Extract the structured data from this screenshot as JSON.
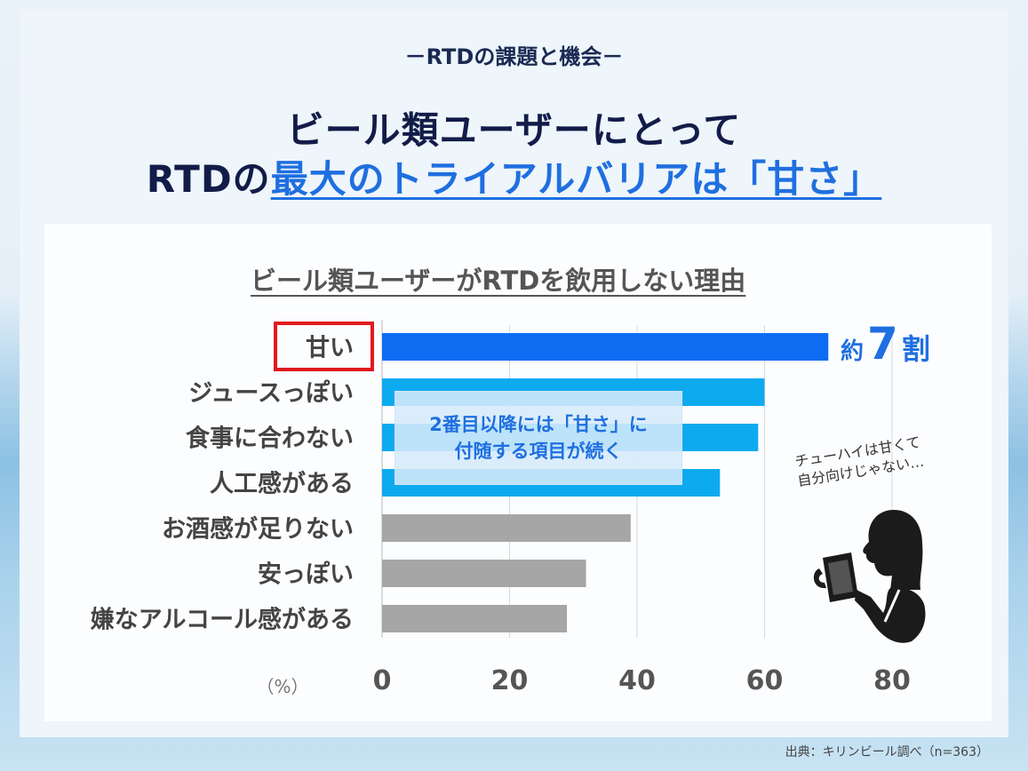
{
  "header": {
    "subtitle": "－RTDの課題と機会－",
    "headline_line1": "ビール類ユーザーにとって",
    "headline_line2_prefix": "RTDの",
    "headline_line2_highlight": "最大のトライアルバリアは「甘さ」"
  },
  "chart_data": {
    "type": "bar",
    "orientation": "horizontal",
    "title": "ビール類ユーザーがRTDを飲用しない理由",
    "categories": [
      "甘い",
      "ジュースっぽい",
      "食事に合わない",
      "人工感がある",
      "お酒感が足りない",
      "安っぽい",
      "嫌なアルコール感がある"
    ],
    "values": [
      70,
      60,
      59,
      53,
      39,
      32,
      29
    ],
    "bar_colors": [
      "#0d6cf2",
      "#0eaaf0",
      "#0eaaf0",
      "#0eaaf0",
      "#a6a6a6",
      "#a6a6a6",
      "#a6a6a6"
    ],
    "xlim": [
      0,
      80
    ],
    "xticks": [
      "0",
      "20",
      "40",
      "60",
      "80"
    ],
    "unit_label": "（%）",
    "grid": true,
    "annotation_prefix": "約",
    "annotation_number": "7",
    "annotation_suffix": "割"
  },
  "callout": {
    "line1": "2番目以降には「甘さ」に",
    "line2": "付随する項目が続く"
  },
  "note": {
    "line1": "チューハイは甘くて",
    "line2": "自分向けじゃない…"
  },
  "source": "出典：キリンビール調べ（n=363）",
  "colors": {
    "navy": "#121c48",
    "accent_blue": "#1f6fe0",
    "highlight_red": "#e0191f"
  }
}
